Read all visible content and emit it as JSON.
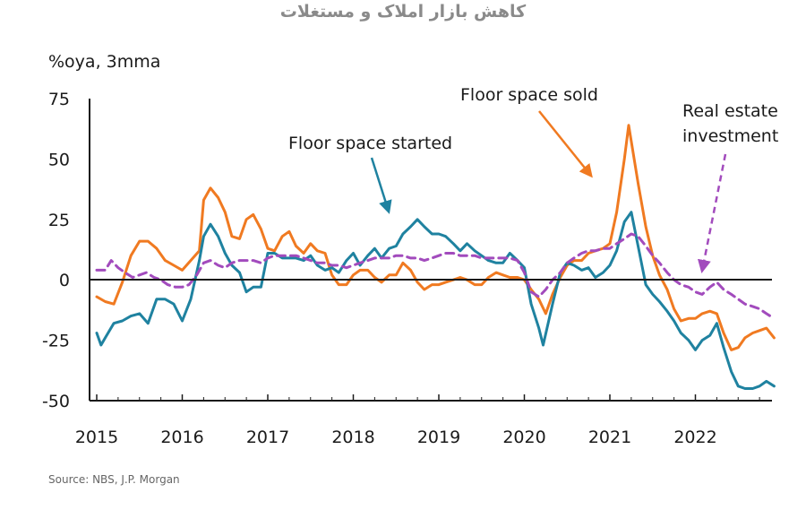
{
  "header": {
    "title": "کاهش بازار املاک و مستغلات"
  },
  "chart_data": {
    "type": "line",
    "title": "کاهش بازار املاک و مستغلات",
    "ylabel": "%oya, 3mma",
    "xlabel": "",
    "source": "Source: NBS, J.P. Morgan",
    "ylim": [
      -50,
      75
    ],
    "yticks": [
      "75",
      "50",
      "25",
      "0",
      "-25",
      "-50"
    ],
    "xticks": [
      "2015",
      "2016",
      "2017",
      "2018",
      "2019",
      "2020",
      "2021",
      "2022"
    ],
    "xlim": [
      2015.0,
      2022.95
    ],
    "annotations": [
      {
        "text": "Floor space started"
      },
      {
        "text": "Floor space sold"
      },
      {
        "text": "Real estate"
      },
      {
        "text": "investment"
      }
    ],
    "series": [
      {
        "name": "Floor space sold",
        "color": "#f07a21",
        "dash": false,
        "points": [
          [
            2015.0,
            -7
          ],
          [
            2015.1,
            -9
          ],
          [
            2015.2,
            -10
          ],
          [
            2015.3,
            -1
          ],
          [
            2015.4,
            10
          ],
          [
            2015.5,
            16
          ],
          [
            2015.6,
            16
          ],
          [
            2015.7,
            13
          ],
          [
            2015.8,
            8
          ],
          [
            2015.9,
            6
          ],
          [
            2016.0,
            4
          ],
          [
            2016.1,
            8
          ],
          [
            2016.2,
            12
          ],
          [
            2016.25,
            33
          ],
          [
            2016.33,
            38
          ],
          [
            2016.42,
            34
          ],
          [
            2016.5,
            28
          ],
          [
            2016.58,
            18
          ],
          [
            2016.67,
            17
          ],
          [
            2016.75,
            25
          ],
          [
            2016.83,
            27
          ],
          [
            2016.92,
            21
          ],
          [
            2017.0,
            13
          ],
          [
            2017.08,
            12
          ],
          [
            2017.17,
            18
          ],
          [
            2017.25,
            20
          ],
          [
            2017.33,
            14
          ],
          [
            2017.42,
            11
          ],
          [
            2017.5,
            15
          ],
          [
            2017.58,
            12
          ],
          [
            2017.67,
            11
          ],
          [
            2017.75,
            2
          ],
          [
            2017.83,
            -2
          ],
          [
            2017.92,
            -2
          ],
          [
            2018.0,
            2
          ],
          [
            2018.08,
            4
          ],
          [
            2018.17,
            4
          ],
          [
            2018.25,
            1
          ],
          [
            2018.33,
            -1
          ],
          [
            2018.42,
            2
          ],
          [
            2018.5,
            2
          ],
          [
            2018.58,
            7
          ],
          [
            2018.67,
            4
          ],
          [
            2018.75,
            -1
          ],
          [
            2018.83,
            -4
          ],
          [
            2018.92,
            -2
          ],
          [
            2019.0,
            -2
          ],
          [
            2019.08,
            -1
          ],
          [
            2019.17,
            0
          ],
          [
            2019.25,
            1
          ],
          [
            2019.33,
            0
          ],
          [
            2019.42,
            -2
          ],
          [
            2019.5,
            -2
          ],
          [
            2019.58,
            1
          ],
          [
            2019.67,
            3
          ],
          [
            2019.75,
            2
          ],
          [
            2019.83,
            1
          ],
          [
            2019.92,
            1
          ],
          [
            2020.0,
            0
          ],
          [
            2020.08,
            -4
          ],
          [
            2020.17,
            -8
          ],
          [
            2020.25,
            -14
          ],
          [
            2020.33,
            -6
          ],
          [
            2020.42,
            1
          ],
          [
            2020.5,
            6
          ],
          [
            2020.58,
            8
          ],
          [
            2020.67,
            8
          ],
          [
            2020.75,
            11
          ],
          [
            2020.83,
            12
          ],
          [
            2020.92,
            13
          ],
          [
            2021.0,
            15
          ],
          [
            2021.08,
            28
          ],
          [
            2021.17,
            50
          ],
          [
            2021.22,
            64
          ],
          [
            2021.33,
            40
          ],
          [
            2021.42,
            22
          ],
          [
            2021.5,
            10
          ],
          [
            2021.58,
            2
          ],
          [
            2021.67,
            -4
          ],
          [
            2021.75,
            -12
          ],
          [
            2021.83,
            -17
          ],
          [
            2021.92,
            -16
          ],
          [
            2022.0,
            -16
          ],
          [
            2022.08,
            -14
          ],
          [
            2022.17,
            -13
          ],
          [
            2022.25,
            -14
          ],
          [
            2022.33,
            -22
          ],
          [
            2022.42,
            -29
          ],
          [
            2022.5,
            -28
          ],
          [
            2022.58,
            -24
          ],
          [
            2022.67,
            -22
          ],
          [
            2022.75,
            -21
          ],
          [
            2022.83,
            -20
          ],
          [
            2022.92,
            -24
          ]
        ]
      },
      {
        "name": "Floor space started",
        "color": "#1f82a0",
        "dash": false,
        "points": [
          [
            2015.0,
            -22
          ],
          [
            2015.05,
            -27
          ],
          [
            2015.1,
            -24
          ],
          [
            2015.2,
            -18
          ],
          [
            2015.3,
            -17
          ],
          [
            2015.4,
            -15
          ],
          [
            2015.5,
            -14
          ],
          [
            2015.6,
            -18
          ],
          [
            2015.7,
            -8
          ],
          [
            2015.8,
            -8
          ],
          [
            2015.9,
            -10
          ],
          [
            2016.0,
            -17
          ],
          [
            2016.1,
            -8
          ],
          [
            2016.2,
            8
          ],
          [
            2016.25,
            18
          ],
          [
            2016.33,
            23
          ],
          [
            2016.42,
            18
          ],
          [
            2016.5,
            11
          ],
          [
            2016.58,
            6
          ],
          [
            2016.67,
            3
          ],
          [
            2016.75,
            -5
          ],
          [
            2016.83,
            -3
          ],
          [
            2016.92,
            -3
          ],
          [
            2017.0,
            11
          ],
          [
            2017.08,
            11
          ],
          [
            2017.17,
            9
          ],
          [
            2017.25,
            9
          ],
          [
            2017.33,
            9
          ],
          [
            2017.42,
            8
          ],
          [
            2017.5,
            10
          ],
          [
            2017.58,
            6
          ],
          [
            2017.67,
            4
          ],
          [
            2017.75,
            5
          ],
          [
            2017.83,
            3
          ],
          [
            2017.92,
            8
          ],
          [
            2018.0,
            11
          ],
          [
            2018.08,
            6
          ],
          [
            2018.17,
            10
          ],
          [
            2018.25,
            13
          ],
          [
            2018.33,
            9
          ],
          [
            2018.42,
            13
          ],
          [
            2018.5,
            14
          ],
          [
            2018.58,
            19
          ],
          [
            2018.67,
            22
          ],
          [
            2018.75,
            25
          ],
          [
            2018.83,
            22
          ],
          [
            2018.92,
            19
          ],
          [
            2019.0,
            19
          ],
          [
            2019.08,
            18
          ],
          [
            2019.17,
            15
          ],
          [
            2019.25,
            12
          ],
          [
            2019.33,
            15
          ],
          [
            2019.42,
            12
          ],
          [
            2019.5,
            10
          ],
          [
            2019.58,
            8
          ],
          [
            2019.67,
            7
          ],
          [
            2019.75,
            7
          ],
          [
            2019.83,
            11
          ],
          [
            2019.92,
            8
          ],
          [
            2020.0,
            5
          ],
          [
            2020.08,
            -10
          ],
          [
            2020.17,
            -20
          ],
          [
            2020.22,
            -27
          ],
          [
            2020.33,
            -10
          ],
          [
            2020.42,
            3
          ],
          [
            2020.5,
            7
          ],
          [
            2020.58,
            6
          ],
          [
            2020.67,
            4
          ],
          [
            2020.75,
            5
          ],
          [
            2020.83,
            1
          ],
          [
            2020.92,
            3
          ],
          [
            2021.0,
            6
          ],
          [
            2021.08,
            12
          ],
          [
            2021.17,
            24
          ],
          [
            2021.25,
            28
          ],
          [
            2021.33,
            14
          ],
          [
            2021.42,
            -2
          ],
          [
            2021.5,
            -6
          ],
          [
            2021.58,
            -9
          ],
          [
            2021.67,
            -13
          ],
          [
            2021.75,
            -17
          ],
          [
            2021.83,
            -22
          ],
          [
            2021.92,
            -25
          ],
          [
            2022.0,
            -29
          ],
          [
            2022.08,
            -25
          ],
          [
            2022.17,
            -23
          ],
          [
            2022.25,
            -18
          ],
          [
            2022.33,
            -28
          ],
          [
            2022.42,
            -38
          ],
          [
            2022.5,
            -44
          ],
          [
            2022.58,
            -45
          ],
          [
            2022.67,
            -45
          ],
          [
            2022.75,
            -44
          ],
          [
            2022.83,
            -42
          ],
          [
            2022.92,
            -44
          ]
        ]
      },
      {
        "name": "Real estate investment",
        "color": "#a24bbd",
        "dash": true,
        "points": [
          [
            2015.0,
            4
          ],
          [
            2015.1,
            4
          ],
          [
            2015.17,
            8
          ],
          [
            2015.25,
            5
          ],
          [
            2015.33,
            3
          ],
          [
            2015.42,
            1
          ],
          [
            2015.5,
            2
          ],
          [
            2015.58,
            3
          ],
          [
            2015.67,
            1
          ],
          [
            2015.75,
            0
          ],
          [
            2015.83,
            -2
          ],
          [
            2015.92,
            -3
          ],
          [
            2016.0,
            -3
          ],
          [
            2016.08,
            -2
          ],
          [
            2016.17,
            2
          ],
          [
            2016.25,
            7
          ],
          [
            2016.33,
            8
          ],
          [
            2016.42,
            6
          ],
          [
            2016.5,
            5
          ],
          [
            2016.58,
            7
          ],
          [
            2016.67,
            8
          ],
          [
            2016.75,
            8
          ],
          [
            2016.83,
            8
          ],
          [
            2016.92,
            7
          ],
          [
            2017.0,
            9
          ],
          [
            2017.08,
            10
          ],
          [
            2017.17,
            10
          ],
          [
            2017.25,
            10
          ],
          [
            2017.33,
            10
          ],
          [
            2017.42,
            9
          ],
          [
            2017.5,
            8
          ],
          [
            2017.58,
            7
          ],
          [
            2017.67,
            7
          ],
          [
            2017.75,
            6
          ],
          [
            2017.83,
            6
          ],
          [
            2017.92,
            5
          ],
          [
            2018.0,
            6
          ],
          [
            2018.08,
            7
          ],
          [
            2018.17,
            8
          ],
          [
            2018.25,
            9
          ],
          [
            2018.33,
            9
          ],
          [
            2018.42,
            9
          ],
          [
            2018.5,
            10
          ],
          [
            2018.58,
            10
          ],
          [
            2018.67,
            9
          ],
          [
            2018.75,
            9
          ],
          [
            2018.83,
            8
          ],
          [
            2018.92,
            9
          ],
          [
            2019.0,
            10
          ],
          [
            2019.08,
            11
          ],
          [
            2019.17,
            11
          ],
          [
            2019.25,
            10
          ],
          [
            2019.33,
            10
          ],
          [
            2019.42,
            10
          ],
          [
            2019.5,
            9
          ],
          [
            2019.58,
            9
          ],
          [
            2019.67,
            9
          ],
          [
            2019.75,
            9
          ],
          [
            2019.83,
            9
          ],
          [
            2019.92,
            8
          ],
          [
            2020.0,
            3
          ],
          [
            2020.08,
            -5
          ],
          [
            2020.17,
            -7
          ],
          [
            2020.25,
            -4
          ],
          [
            2020.33,
            0
          ],
          [
            2020.42,
            3
          ],
          [
            2020.5,
            7
          ],
          [
            2020.58,
            9
          ],
          [
            2020.67,
            11
          ],
          [
            2020.75,
            12
          ],
          [
            2020.83,
            12
          ],
          [
            2020.92,
            13
          ],
          [
            2021.0,
            13
          ],
          [
            2021.08,
            15
          ],
          [
            2021.17,
            17
          ],
          [
            2021.25,
            19
          ],
          [
            2021.33,
            18
          ],
          [
            2021.42,
            14
          ],
          [
            2021.5,
            10
          ],
          [
            2021.58,
            7
          ],
          [
            2021.67,
            3
          ],
          [
            2021.75,
            0
          ],
          [
            2021.83,
            -2
          ],
          [
            2021.92,
            -3
          ],
          [
            2022.0,
            -5
          ],
          [
            2022.08,
            -6
          ],
          [
            2022.17,
            -3
          ],
          [
            2022.25,
            -1
          ],
          [
            2022.33,
            -4
          ],
          [
            2022.42,
            -6
          ],
          [
            2022.5,
            -8
          ],
          [
            2022.58,
            -10
          ],
          [
            2022.67,
            -11
          ],
          [
            2022.75,
            -12
          ],
          [
            2022.83,
            -14
          ],
          [
            2022.92,
            -16
          ]
        ]
      }
    ]
  }
}
